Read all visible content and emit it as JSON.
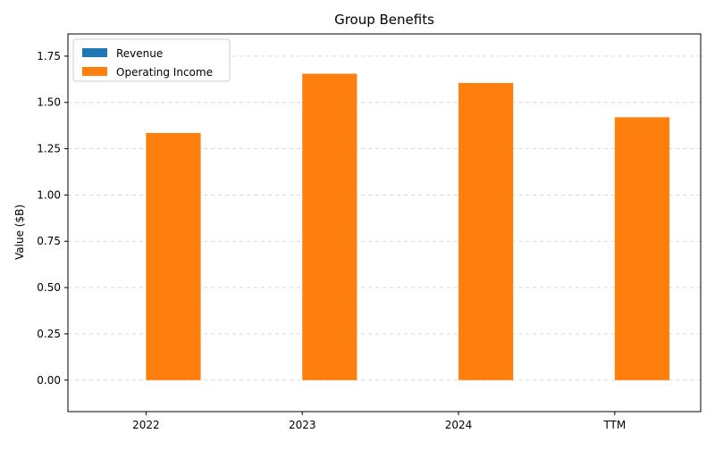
{
  "chart_data": {
    "type": "bar",
    "title": "Group Benefits",
    "xlabel": "",
    "ylabel": "Value ($B)",
    "categories": [
      "2022",
      "2023",
      "2024",
      "TTM"
    ],
    "series": [
      {
        "name": "Revenue",
        "color": "#1f77b4",
        "values": [
          null,
          null,
          null,
          null
        ]
      },
      {
        "name": "Operating Income",
        "color": "#ff7f0e",
        "values": [
          1.335,
          1.655,
          1.605,
          1.42
        ]
      }
    ],
    "ylim": [
      -0.17,
      1.87
    ],
    "yticks": [
      0.0,
      0.25,
      0.5,
      0.75,
      1.0,
      1.25,
      1.5,
      1.75
    ],
    "ytick_labels": [
      "0.00",
      "0.25",
      "0.50",
      "0.75",
      "1.00",
      "1.25",
      "1.50",
      "1.75"
    ],
    "grid": "y-dashed",
    "legend_position": "top-left"
  }
}
